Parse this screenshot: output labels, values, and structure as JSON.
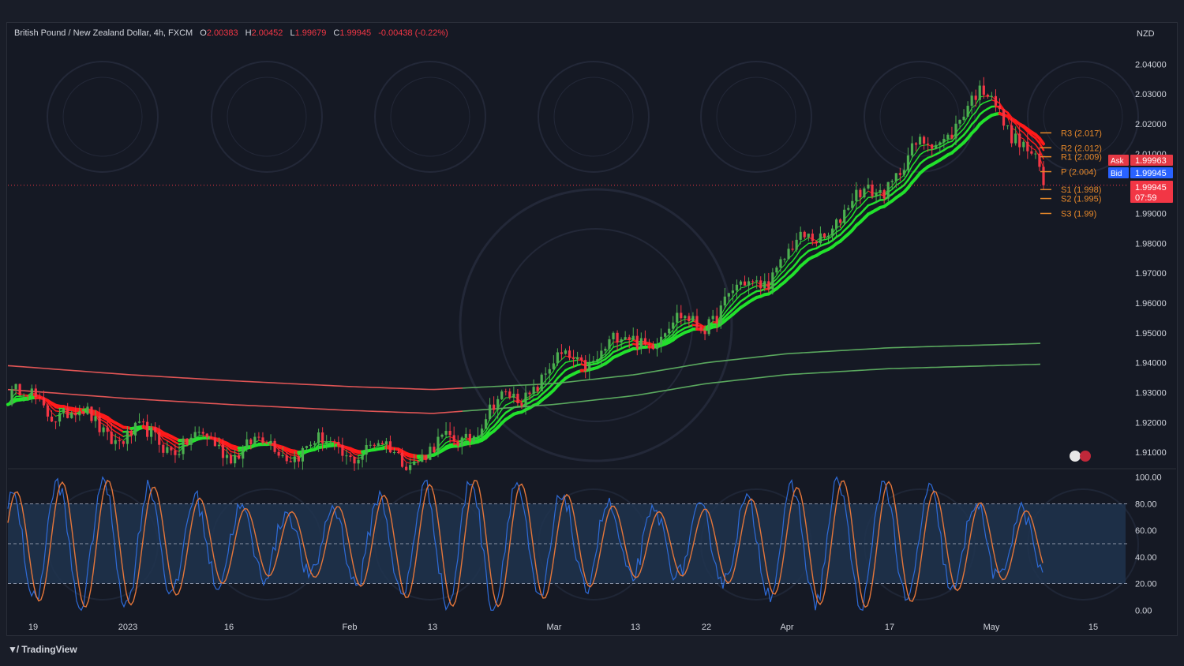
{
  "header": {
    "symbol": "British Pound / New Zealand Dollar, 4h, FXCM",
    "o_label": "O",
    "o_value": "2.00383",
    "h_label": "H",
    "h_value": "2.00452",
    "l_label": "L",
    "l_value": "1.99679",
    "c_label": "C",
    "c_value": "1.99945",
    "change": "-0.00438 (-0.22%)"
  },
  "footer": {
    "brand": "TradingView"
  },
  "colors": {
    "background": "#151924",
    "up": "#4caf50",
    "down": "#f23645",
    "ribbon_green": "#22e22c",
    "ribbon_red": "#ff1a1a",
    "slow_ma_green": "#5aa85e",
    "slow_ma_red": "#e05555",
    "pivot": "#e8892a",
    "stoch_k": "#2e6bd8",
    "stoch_d": "#e5763a",
    "stoch_band": "#1f3450"
  },
  "chart_data": [
    {
      "type": "line",
      "title": "British Pound / New Zealand Dollar, 4h, FXCM",
      "currency": "NZD",
      "ylim": [
        1.905,
        2.043
      ],
      "y_ticks": [
        "2.04000",
        "2.03000",
        "2.02000",
        "2.01000",
        "2.00000",
        "1.99000",
        "1.98000",
        "1.97000",
        "1.96000",
        "1.95000",
        "1.94000",
        "1.93000",
        "1.92000",
        "1.91000"
      ],
      "x_ticks": [
        "19",
        "2023",
        "16",
        "Feb",
        "13",
        "Mar",
        "13",
        "22",
        "Apr",
        "17",
        "May",
        "15"
      ],
      "grid": false,
      "series": [
        {
          "x": [
            "19",
            "2023",
            "16",
            "Feb",
            "13",
            "Mar",
            "13",
            "22",
            "Apr",
            "17",
            "May"
          ],
          "values": [
            1.928,
            1.915,
            1.912,
            1.911,
            1.909,
            1.938,
            1.948,
            1.955,
            1.975,
            2.002,
            2.031
          ]
        },
        {
          "x": [
            "May"
          ],
          "values": [
            1.99945
          ]
        }
      ],
      "moving_averages": {
        "slow_ma_1": [
          1.939,
          1.936,
          1.934,
          1.932,
          1.931,
          1.933,
          1.936,
          1.94,
          1.943,
          1.945,
          1.9465
        ],
        "slow_ma_2": [
          1.931,
          1.928,
          1.926,
          1.924,
          1.923,
          1.926,
          1.929,
          1.933,
          1.936,
          1.938,
          1.9395
        ]
      },
      "pivots": [
        {
          "label": "R3 (2.017)",
          "value": 2.017
        },
        {
          "label": "R2 (2.012)",
          "value": 2.012
        },
        {
          "label": "R1 (2.009)",
          "value": 2.009
        },
        {
          "label": "P (2.004)",
          "value": 2.004
        },
        {
          "label": "S1 (1.998)",
          "value": 1.998
        },
        {
          "label": "S2 (1.995)",
          "value": 1.995
        },
        {
          "label": "S3 (1.99)",
          "value": 1.99
        }
      ],
      "quotes": {
        "ask_label": "Ask",
        "ask": "1.99963",
        "bid_label": "Bid",
        "bid": "1.99945",
        "last": "1.99945",
        "countdown": "07:59"
      }
    },
    {
      "type": "line",
      "title": "",
      "ylim": [
        -4,
        104
      ],
      "y_ticks": [
        "100.00",
        "80.00",
        "60.00",
        "40.00",
        "20.00",
        "0.00"
      ],
      "band": [
        20,
        80
      ],
      "dashed_levels": [
        80,
        50,
        20
      ]
    }
  ]
}
